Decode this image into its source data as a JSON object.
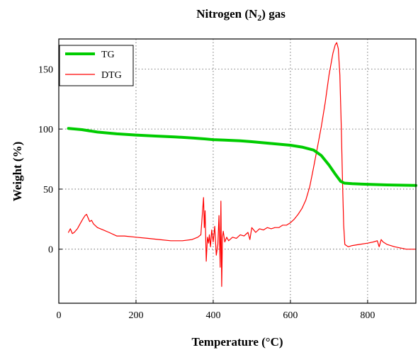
{
  "chart_data": {
    "type": "line",
    "title": "Nitrogen (N",
    "title_sub": "2",
    "title_tail": ") gas",
    "xlabel": "Temperature (°C)",
    "ylabel": "Weight (%)",
    "xlim": [
      0,
      925
    ],
    "ylim": [
      -45,
      175
    ],
    "xticks": [
      0,
      200,
      400,
      600,
      800
    ],
    "yticks": [
      0,
      50,
      100,
      150
    ],
    "grid": true,
    "legend_position": "top-left",
    "series": [
      {
        "name": "TG",
        "color": "#00cc00",
        "x": [
          25,
          60,
          100,
          150,
          200,
          250,
          300,
          350,
          380,
          400,
          430,
          470,
          500,
          550,
          600,
          630,
          660,
          680,
          700,
          715,
          730,
          740,
          760,
          800,
          850,
          900,
          925
        ],
        "y": [
          100.5,
          99.5,
          97.5,
          96,
          95,
          94.2,
          93.5,
          92.5,
          91.8,
          91.2,
          90.8,
          90.2,
          89.5,
          88,
          86.5,
          85,
          82.5,
          78,
          70,
          63,
          56.5,
          55,
          54.5,
          54,
          53.5,
          53.2,
          53
        ]
      },
      {
        "name": "DTG",
        "color": "#ff0000",
        "x": [
          25,
          30,
          35,
          40,
          48,
          55,
          62,
          68,
          72,
          76,
          80,
          85,
          90,
          100,
          115,
          130,
          150,
          170,
          200,
          230,
          260,
          290,
          320,
          345,
          360,
          368,
          372,
          375,
          377,
          379,
          382,
          385,
          388,
          390,
          393,
          396,
          400,
          404,
          408,
          412,
          415,
          418,
          420,
          422,
          424,
          426,
          430,
          435,
          440,
          450,
          460,
          470,
          480,
          490,
          495,
          500,
          510,
          520,
          530,
          540,
          550,
          560,
          570,
          580,
          590,
          600,
          610,
          620,
          630,
          640,
          650,
          660,
          670,
          680,
          690,
          700,
          710,
          716,
          720,
          724,
          728,
          732,
          735,
          738,
          741,
          745,
          750,
          760,
          780,
          800,
          815,
          825,
          830,
          835,
          840,
          850,
          870,
          900,
          925
        ],
        "y": [
          14,
          17,
          13,
          14,
          17,
          21,
          25,
          28,
          29,
          26,
          23,
          24,
          21,
          18,
          16,
          14,
          11,
          11,
          10,
          9,
          8,
          7,
          7,
          8,
          10,
          12,
          30,
          43,
          18,
          32,
          -10,
          10,
          5,
          12,
          2,
          16,
          6,
          19,
          -5,
          4,
          28,
          -15,
          40,
          -31,
          10,
          15,
          6,
          10,
          7,
          10,
          9,
          12,
          11,
          14,
          8,
          18,
          14,
          17,
          16,
          18,
          17,
          18,
          18,
          20,
          20,
          22,
          25,
          29,
          34,
          41,
          52,
          68,
          85,
          102,
          122,
          145,
          163,
          170,
          172,
          167,
          145,
          100,
          55,
          20,
          4,
          3,
          2,
          3,
          4,
          5,
          6,
          7,
          2,
          8,
          6,
          4,
          2,
          0,
          0
        ]
      }
    ]
  }
}
